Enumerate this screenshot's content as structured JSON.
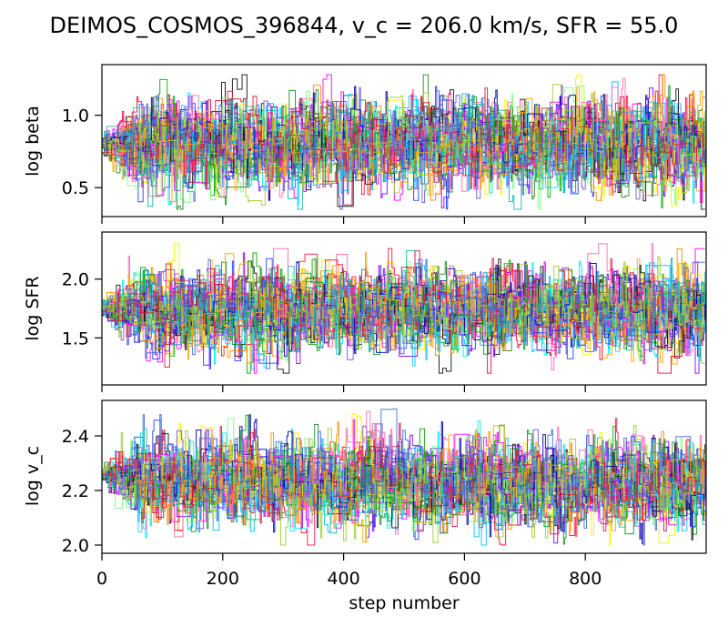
{
  "chart_data": {
    "type": "line",
    "title": "DEIMOS_COSMOS_396844, v_c = 206.0 km/s, SFR = 55.0",
    "xlabel": "step number",
    "xlim": [
      0,
      1000
    ],
    "x_ticks": [
      "0",
      "200",
      "400",
      "600",
      "800"
    ],
    "x_tick_values": [
      0,
      200,
      400,
      600,
      800
    ],
    "n_walkers": 40,
    "n_steps": 1000,
    "walker_colors": [
      "#1f3fff",
      "#ff00ff",
      "#00aa00",
      "#ff8c00",
      "#00e5ff",
      "#8b00ff",
      "#111111",
      "#ffee00",
      "#ff1744",
      "#00bfff",
      "#7fff7f",
      "#0000aa",
      "#ff69b4",
      "#228b22",
      "#6a5acd",
      "#ffa500",
      "#20b2aa",
      "#dc143c",
      "#4169e1",
      "#9acd32"
    ],
    "panels": [
      {
        "ylabel": "log beta",
        "ylim": [
          0.3,
          1.35
        ],
        "y_ticks": [
          "0.5",
          "1.0"
        ],
        "y_tick_values": [
          0.5,
          1.0
        ],
        "start_value": 0.8,
        "chain_mean": 0.8,
        "chain_spread": 0.18,
        "chain_min": 0.35,
        "chain_max": 1.28
      },
      {
        "ylabel": "log SFR",
        "ylim": [
          1.1,
          2.4
        ],
        "y_ticks": [
          "1.5",
          "2.0"
        ],
        "y_tick_values": [
          1.5,
          2.0
        ],
        "start_value": 1.74,
        "chain_mean": 1.74,
        "chain_spread": 0.2,
        "chain_min": 1.2,
        "chain_max": 2.3
      },
      {
        "ylabel": "log v_c",
        "ylim": [
          1.97,
          2.53
        ],
        "y_ticks": [
          "2.0",
          "2.2",
          "2.4"
        ],
        "y_tick_values": [
          2.0,
          2.2,
          2.4
        ],
        "start_value": 2.26,
        "chain_mean": 2.23,
        "chain_spread": 0.09,
        "chain_min": 2.0,
        "chain_max": 2.5
      }
    ]
  }
}
